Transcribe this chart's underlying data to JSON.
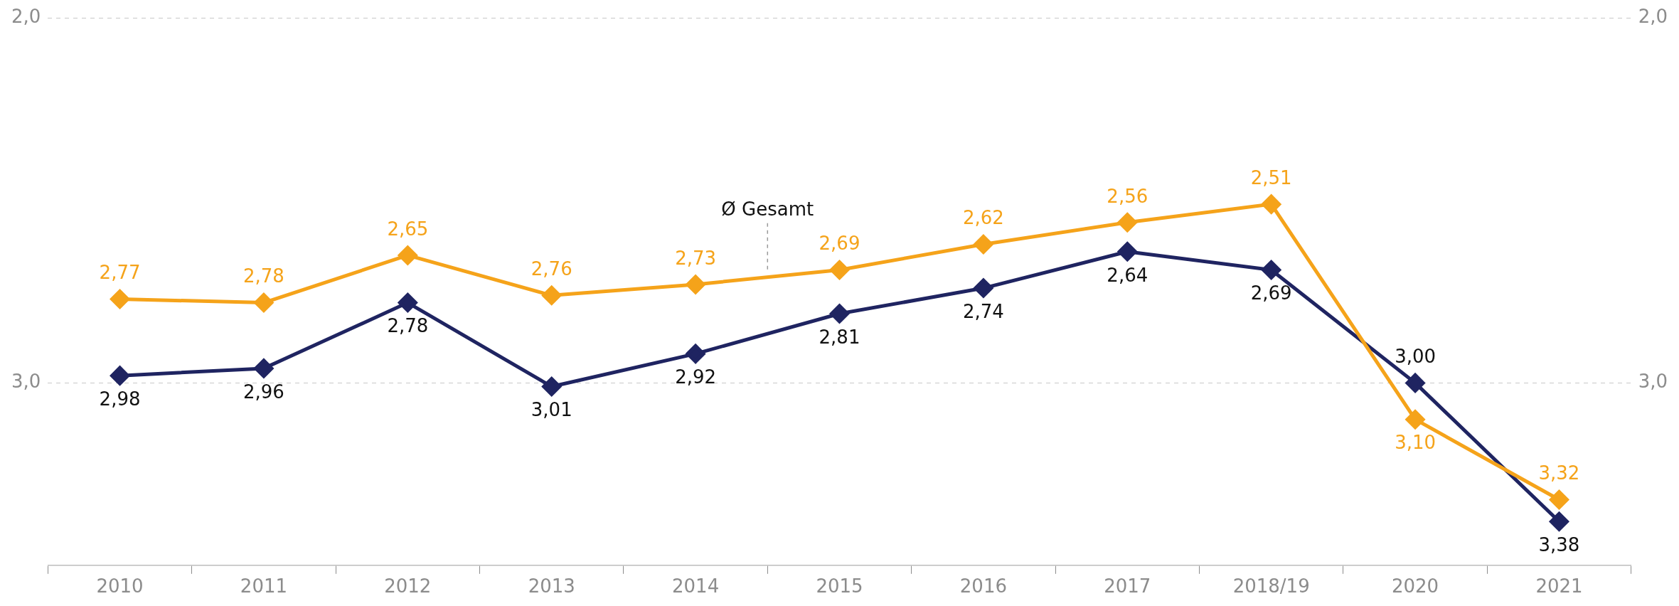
{
  "chart_data": {
    "type": "line",
    "categories": [
      "2010",
      "2011",
      "2012",
      "2013",
      "2014",
      "2015",
      "2016",
      "2017",
      "2018/19",
      "2020",
      "2021"
    ],
    "series": [
      {
        "name": "Ø Gesamt",
        "color": "#f5a31a",
        "values": [
          2.77,
          2.78,
          2.65,
          2.76,
          2.73,
          2.69,
          2.62,
          2.56,
          2.51,
          3.1,
          3.32
        ],
        "value_labels": [
          "2,77",
          "2,78",
          "2,65",
          "2,76",
          "2,73",
          "2,69",
          "2,62",
          "2,56",
          "2,51",
          "3,10",
          "3,32"
        ]
      },
      {
        "color": "#1f2461",
        "values": [
          2.98,
          2.96,
          2.78,
          3.01,
          2.92,
          2.81,
          2.74,
          2.64,
          2.69,
          3.0,
          3.38
        ],
        "value_labels": [
          "2,98",
          "2,96",
          "2,78",
          "3,01",
          "2,92",
          "2,81",
          "2,74",
          "2,64",
          "2,69",
          "3,00",
          "3,38"
        ]
      }
    ],
    "ylim": [
      3.5,
      2.0
    ],
    "yticks": [
      {
        "value": 2.0,
        "label": "2,0"
      },
      {
        "value": 3.0,
        "label": "3,0"
      }
    ],
    "y2lim": [
      3.5,
      2.0
    ],
    "y2ticks": [
      {
        "value": 2.0,
        "label": "2,0"
      },
      {
        "value": 3.0,
        "label": "3,0"
      }
    ],
    "grid": "y",
    "legend": false,
    "marker": "diamond",
    "line_style": "solid"
  }
}
